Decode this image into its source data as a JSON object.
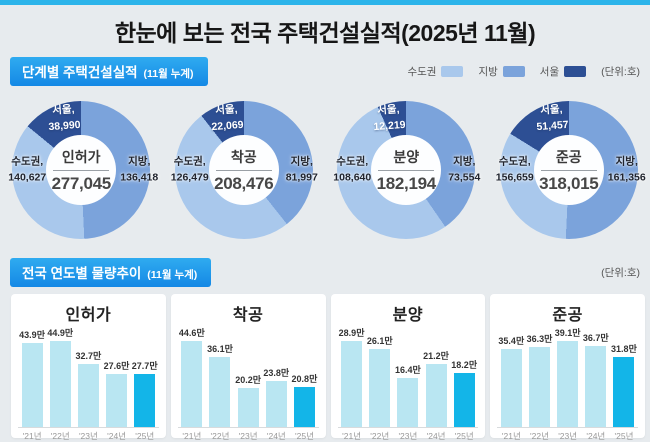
{
  "page": {
    "title": "한눈에 보는 전국 주택건설실적(2025년 11월)"
  },
  "palette": {
    "accent_stripe": "#2cb4ea",
    "badge_from": "#2fabf0",
    "badge_to": "#1488e5",
    "donut_sudogwon": "#a9c8ec",
    "donut_jibang": "#7ba3db",
    "donut_seoul": "#2d4f94",
    "bar_normal": "#b9e6f2",
    "bar_highlight": "#13b5e8",
    "page_bg": "#e7ebee"
  },
  "section1": {
    "badge_title": "단계별 주택건설실적",
    "badge_subtitle": "(11월 누계)",
    "unit_label": "(단위:호)",
    "legend": [
      {
        "label": "수도권"
      },
      {
        "label": "지방"
      },
      {
        "label": "서울"
      }
    ]
  },
  "section2": {
    "badge_title": "전국 연도별 물량추이",
    "badge_subtitle": "(11월 누계)",
    "unit_label": "(단위:호)"
  },
  "chart_data": [
    {
      "type": "donut",
      "name": "인허가",
      "total": 277045,
      "total_label": "277,045",
      "unit": "호",
      "segments": [
        {
          "key": "sudogwon",
          "label": "수도권,",
          "value": 140627,
          "value_label": "140,627"
        },
        {
          "key": "jibang",
          "label": "지방,",
          "value": 136418,
          "value_label": "136,418"
        },
        {
          "key": "seoul",
          "label": "서울,",
          "value": 38990,
          "value_label": "38,990"
        }
      ]
    },
    {
      "type": "donut",
      "name": "착공",
      "total": 208476,
      "total_label": "208,476",
      "unit": "호",
      "segments": [
        {
          "key": "sudogwon",
          "label": "수도권,",
          "value": 126479,
          "value_label": "126,479"
        },
        {
          "key": "jibang",
          "label": "지방,",
          "value": 81997,
          "value_label": "81,997"
        },
        {
          "key": "seoul",
          "label": "서울,",
          "value": 22069,
          "value_label": "22,069"
        }
      ]
    },
    {
      "type": "donut",
      "name": "분양",
      "total": 182194,
      "total_label": "182,194",
      "unit": "호",
      "segments": [
        {
          "key": "sudogwon",
          "label": "수도권,",
          "value": 108640,
          "value_label": "108,640"
        },
        {
          "key": "jibang",
          "label": "지방,",
          "value": 73554,
          "value_label": "73,554"
        },
        {
          "key": "seoul",
          "label": "서울,",
          "value": 12219,
          "value_label": "12,219"
        }
      ]
    },
    {
      "type": "donut",
      "name": "준공",
      "total": 318015,
      "total_label": "318,015",
      "unit": "호",
      "segments": [
        {
          "key": "sudogwon",
          "label": "수도권,",
          "value": 156659,
          "value_label": "156,659"
        },
        {
          "key": "jibang",
          "label": "지방,",
          "value": 161356,
          "value_label": "161,356"
        },
        {
          "key": "seoul",
          "label": "서울,",
          "value": 51457,
          "value_label": "51,457"
        }
      ]
    },
    {
      "type": "bar",
      "title": "인허가",
      "categories": [
        "'21년",
        "'22년",
        "'23년",
        "'24년",
        "'25년"
      ],
      "values": [
        43.9,
        44.9,
        32.7,
        27.6,
        27.7
      ],
      "value_labels": [
        "43.9만",
        "44.9만",
        "32.7만",
        "27.6만",
        "27.7만"
      ],
      "unit": "만호",
      "highlight_index": 4
    },
    {
      "type": "bar",
      "title": "착공",
      "categories": [
        "'21년",
        "'22년",
        "'23년",
        "'24년",
        "'25년"
      ],
      "values": [
        44.6,
        36.1,
        20.2,
        23.8,
        20.8
      ],
      "value_labels": [
        "44.6만",
        "36.1만",
        "20.2만",
        "23.8만",
        "20.8만"
      ],
      "unit": "만호",
      "highlight_index": 4
    },
    {
      "type": "bar",
      "title": "분양",
      "categories": [
        "'21년",
        "'22년",
        "'23년",
        "'24년",
        "'25년"
      ],
      "values": [
        28.9,
        26.1,
        16.4,
        21.2,
        18.2
      ],
      "value_labels": [
        "28.9만",
        "26.1만",
        "16.4만",
        "21.2만",
        "18.2만"
      ],
      "unit": "만호",
      "highlight_index": 4
    },
    {
      "type": "bar",
      "title": "준공",
      "categories": [
        "'21년",
        "'22년",
        "'23년",
        "'24년",
        "'25년"
      ],
      "values": [
        35.4,
        36.3,
        39.1,
        36.7,
        31.8
      ],
      "value_labels": [
        "35.4만",
        "36.3만",
        "39.1만",
        "36.7만",
        "31.8만"
      ],
      "unit": "만호",
      "highlight_index": 4
    }
  ]
}
